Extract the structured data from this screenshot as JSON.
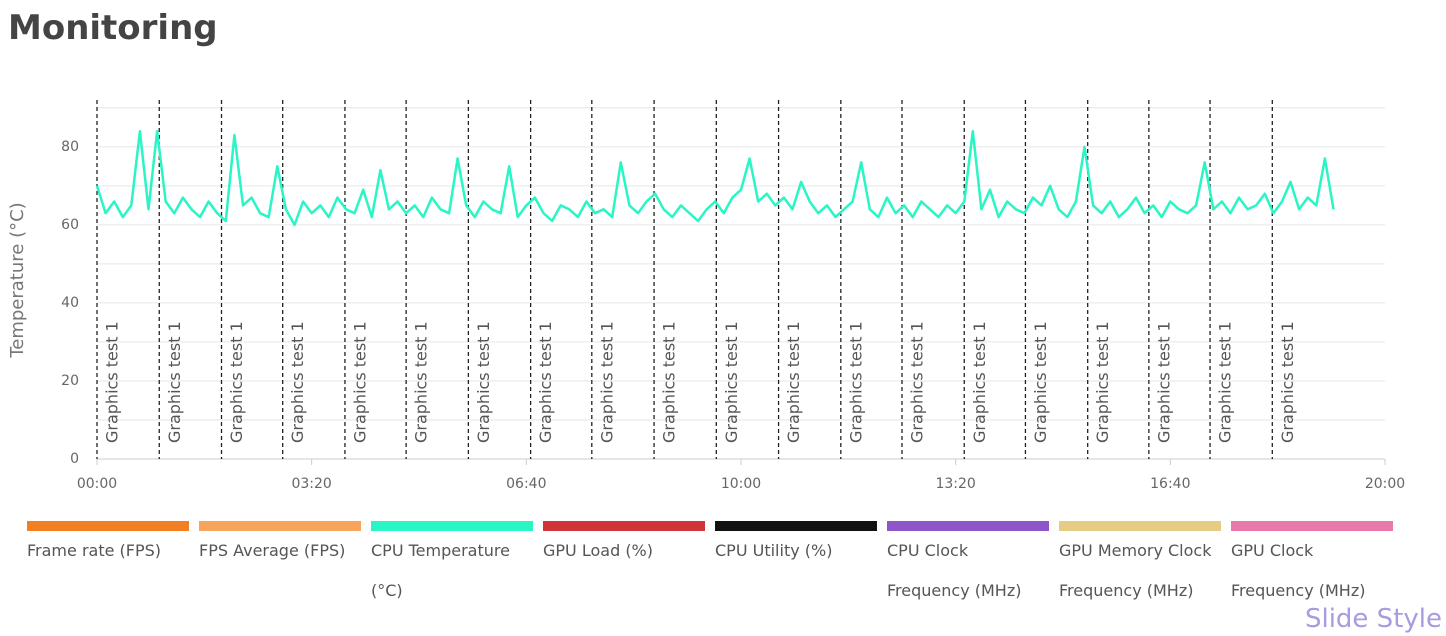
{
  "chart_data": {
    "type": "line",
    "title": "Monitoring",
    "y_label": "Temperature (°C)",
    "ylim": [
      0,
      92
    ],
    "yticks": [
      0,
      20,
      40,
      60,
      80
    ],
    "minor_yticks": [
      10,
      30,
      50,
      70,
      90
    ],
    "xlim": [
      0,
      1200
    ],
    "xticks": [
      {
        "value": 0,
        "label": "00:00"
      },
      {
        "value": 200,
        "label": "03:20"
      },
      {
        "value": 400,
        "label": "06:40"
      },
      {
        "value": 600,
        "label": "10:00"
      },
      {
        "value": 800,
        "label": "13:20"
      },
      {
        "value": 1000,
        "label": "16:40"
      },
      {
        "value": 1200,
        "label": "20:00"
      }
    ],
    "grid": true,
    "annotations": [
      {
        "x": 0,
        "label": "Graphics test 1"
      },
      {
        "x": 58,
        "label": "Graphics test 1"
      },
      {
        "x": 116,
        "label": "Graphics test 1"
      },
      {
        "x": 173,
        "label": "Graphics test 1"
      },
      {
        "x": 231,
        "label": "Graphics test 1"
      },
      {
        "x": 288,
        "label": "Graphics test 1"
      },
      {
        "x": 346,
        "label": "Graphics test 1"
      },
      {
        "x": 404,
        "label": "Graphics test 1"
      },
      {
        "x": 461,
        "label": "Graphics test 1"
      },
      {
        "x": 519,
        "label": "Graphics test 1"
      },
      {
        "x": 577,
        "label": "Graphics test 1"
      },
      {
        "x": 635,
        "label": "Graphics test 1"
      },
      {
        "x": 693,
        "label": "Graphics test 1"
      },
      {
        "x": 750,
        "label": "Graphics test 1"
      },
      {
        "x": 808,
        "label": "Graphics test 1"
      },
      {
        "x": 865,
        "label": "Graphics test 1"
      },
      {
        "x": 923,
        "label": "Graphics test 1"
      },
      {
        "x": 980,
        "label": "Graphics test 1"
      },
      {
        "x": 1037,
        "label": "Graphics test 1"
      },
      {
        "x": 1095,
        "label": "Graphics test 1"
      }
    ],
    "x": [
      0,
      8,
      16,
      24,
      32,
      40,
      48,
      56,
      64,
      72,
      80,
      88,
      96,
      104,
      112,
      120,
      128,
      136,
      144,
      152,
      160,
      168,
      176,
      184,
      192,
      200,
      208,
      216,
      224,
      232,
      240,
      248,
      256,
      264,
      272,
      280,
      288,
      296,
      304,
      312,
      320,
      328,
      336,
      344,
      352,
      360,
      368,
      376,
      384,
      392,
      400,
      408,
      416,
      424,
      432,
      440,
      448,
      456,
      464,
      472,
      480,
      488,
      496,
      504,
      512,
      520,
      528,
      536,
      544,
      552,
      560,
      568,
      576,
      584,
      592,
      600,
      608,
      616,
      624,
      632,
      640,
      648,
      656,
      664,
      672,
      680,
      688,
      696,
      704,
      712,
      720,
      728,
      736,
      744,
      752,
      760,
      768,
      776,
      784,
      792,
      800,
      808,
      816,
      824,
      832,
      840,
      848,
      856,
      864,
      872,
      880,
      888,
      896,
      904,
      912,
      920,
      928,
      936,
      944,
      952,
      960,
      968,
      976,
      984,
      992,
      1000,
      1008,
      1016,
      1024,
      1032,
      1040,
      1048,
      1056,
      1064,
      1072,
      1080,
      1088,
      1096,
      1104,
      1112,
      1120,
      1128,
      1136,
      1144,
      1152
    ],
    "series": [
      {
        "name": "Frame rate (FPS)",
        "color": "#f28022"
      },
      {
        "name": "FPS Average (FPS)",
        "color": "#f7a45c"
      },
      {
        "name": "CPU Temperature (°C)",
        "color": "#2af5c5",
        "values": [
          70,
          63,
          66,
          62,
          65,
          84,
          64,
          84,
          66,
          63,
          67,
          64,
          62,
          66,
          63,
          61,
          83,
          65,
          67,
          63,
          62,
          75,
          64,
          60,
          66,
          63,
          65,
          62,
          67,
          64,
          63,
          69,
          62,
          74,
          64,
          66,
          63,
          65,
          62,
          67,
          64,
          63,
          77,
          65,
          62,
          66,
          64,
          63,
          75,
          62,
          65,
          67,
          63,
          61,
          65,
          64,
          62,
          66,
          63,
          64,
          62,
          76,
          65,
          63,
          66,
          68,
          64,
          62,
          65,
          63,
          61,
          64,
          66,
          63,
          67,
          69,
          77,
          66,
          68,
          65,
          67,
          64,
          71,
          66,
          63,
          65,
          62,
          64,
          66,
          76,
          64,
          62,
          67,
          63,
          65,
          62,
          66,
          64,
          62,
          65,
          63,
          66,
          84,
          64,
          69,
          62,
          66,
          64,
          63,
          67,
          65,
          70,
          64,
          62,
          66,
          80,
          65,
          63,
          66,
          62,
          64,
          67,
          63,
          65,
          62,
          66,
          64,
          63,
          65,
          76,
          64,
          66,
          63,
          67,
          64,
          65,
          68,
          63,
          66,
          71,
          64,
          67,
          65,
          77,
          64
        ]
      },
      {
        "name": "GPU Load (%)",
        "color": "#d0343b"
      },
      {
        "name": "CPU Utility (%)",
        "color": "#111111"
      },
      {
        "name": "CPU Clock Frequency (MHz)",
        "color": "#8e56c8"
      },
      {
        "name": "GPU Memory Clock Frequency (MHz)",
        "color": "#e6cc82"
      },
      {
        "name": "GPU Clock Frequency (MHz)",
        "color": "#e87aab"
      }
    ],
    "watermark": "Slide Style"
  }
}
